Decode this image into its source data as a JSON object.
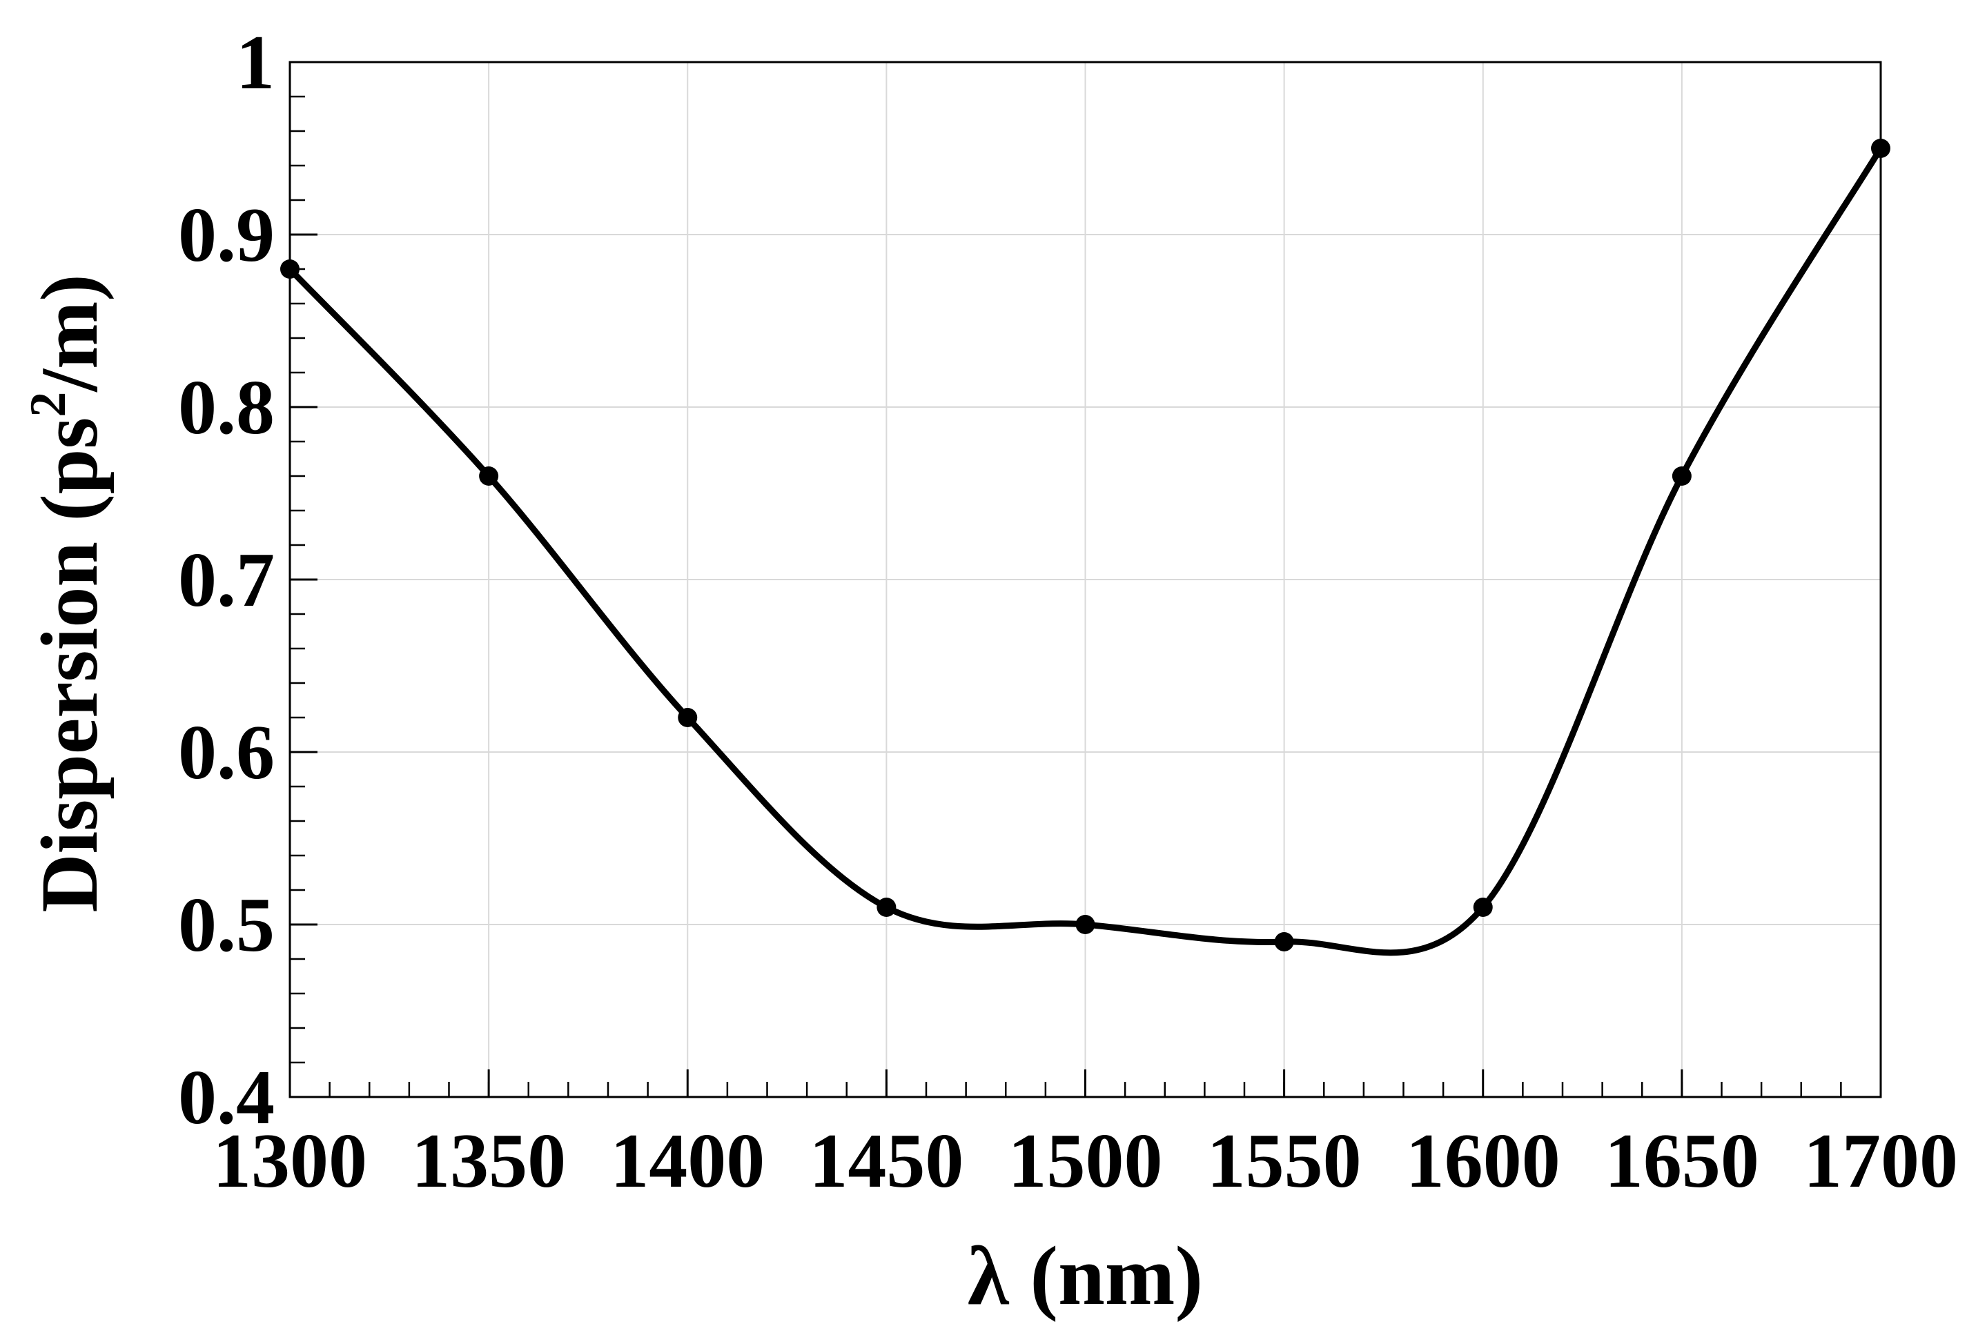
{
  "chart_data": {
    "type": "line",
    "xlabel": "λ (nm)",
    "ylabel_main": "Dispersion (ps",
    "ylabel_sup": "2",
    "ylabel_end": "/m)",
    "xlim": [
      1300,
      1700
    ],
    "ylim": [
      0.4,
      1.0
    ],
    "x_ticks": [
      1300,
      1350,
      1400,
      1450,
      1500,
      1550,
      1600,
      1650,
      1700
    ],
    "x_tick_labels": [
      "1300",
      "1350",
      "1400",
      "1450",
      "1500",
      "1550",
      "1600",
      "1650",
      "1700"
    ],
    "y_ticks": [
      0.4,
      0.5,
      0.6,
      0.7,
      0.8,
      0.9,
      1.0
    ],
    "y_tick_labels": [
      "0.4",
      "0.5",
      "0.6",
      "0.7",
      "0.8",
      "0.9",
      "1"
    ],
    "x_minor_step": 10,
    "y_minor_step": 0.02,
    "grid": true,
    "line_color": "#000000",
    "grid_color": "#d9d9d9",
    "series": [
      {
        "x": [
          1300,
          1350,
          1400,
          1450,
          1500,
          1550,
          1600,
          1650,
          1700
        ],
        "values": [
          0.88,
          0.76,
          0.62,
          0.51,
          0.5,
          0.49,
          0.51,
          0.76,
          0.95
        ]
      }
    ]
  }
}
